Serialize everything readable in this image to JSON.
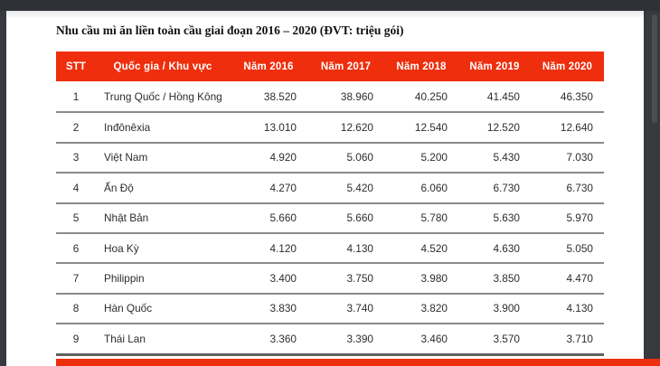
{
  "document": {
    "title": "Nhu cầu mì ăn liền toàn cầu giai đoạn 2016 – 2020 (ĐVT: triệu gói)"
  },
  "table": {
    "columns": [
      "STT",
      "Quốc gia / Khu vực",
      "Năm 2016",
      "Năm 2017",
      "Năm 2018",
      "Năm 2019",
      "Năm 2020"
    ],
    "rows": [
      {
        "stt": "1",
        "country": "Trung Quốc / Hồng Kông",
        "values": [
          "38.520",
          "38.960",
          "40.250",
          "41.450",
          "46.350"
        ]
      },
      {
        "stt": "2",
        "country": "Inđônêxia",
        "values": [
          "13.010",
          "12.620",
          "12.540",
          "12.520",
          "12.640"
        ]
      },
      {
        "stt": "3",
        "country": "Việt Nam",
        "values": [
          "4.920",
          "5.060",
          "5.200",
          "5.430",
          "7.030"
        ]
      },
      {
        "stt": "4",
        "country": "Ấn Độ",
        "values": [
          "4.270",
          "5.420",
          "6.060",
          "6.730",
          "6.730"
        ]
      },
      {
        "stt": "5",
        "country": "Nhật Bản",
        "values": [
          "5.660",
          "5.660",
          "5.780",
          "5.630",
          "5.970"
        ]
      },
      {
        "stt": "6",
        "country": "Hoa Kỳ",
        "values": [
          "4.120",
          "4.130",
          "4.520",
          "4.630",
          "5.050"
        ]
      },
      {
        "stt": "7",
        "country": "Philippin",
        "values": [
          "3.400",
          "3.750",
          "3.980",
          "3.850",
          "4.470"
        ]
      },
      {
        "stt": "8",
        "country": "Hàn Quốc",
        "values": [
          "3.830",
          "3.740",
          "3.820",
          "3.900",
          "4.130"
        ]
      },
      {
        "stt": "9",
        "country": "Thái Lan",
        "values": [
          "3.360",
          "3.390",
          "3.460",
          "3.570",
          "3.710"
        ]
      }
    ]
  },
  "chart_data": {
    "type": "table",
    "title": "Nhu cầu mì ăn liền toàn cầu giai đoạn 2016 – 2020",
    "unit": "triệu gói",
    "categories": [
      "Năm 2016",
      "Năm 2017",
      "Năm 2018",
      "Năm 2019",
      "Năm 2020"
    ],
    "series": [
      {
        "name": "Trung Quốc / Hồng Kông",
        "values": [
          38520,
          38960,
          40250,
          41450,
          46350
        ]
      },
      {
        "name": "Inđônêxia",
        "values": [
          13010,
          12620,
          12540,
          12520,
          12640
        ]
      },
      {
        "name": "Việt Nam",
        "values": [
          4920,
          5060,
          5200,
          5430,
          7030
        ]
      },
      {
        "name": "Ấn Độ",
        "values": [
          4270,
          5420,
          6060,
          6730,
          6730
        ]
      },
      {
        "name": "Nhật Bản",
        "values": [
          5660,
          5660,
          5780,
          5630,
          5970
        ]
      },
      {
        "name": "Hoa Kỳ",
        "values": [
          4120,
          4130,
          4520,
          4630,
          5050
        ]
      },
      {
        "name": "Philippin",
        "values": [
          3400,
          3750,
          3980,
          3850,
          4470
        ]
      },
      {
        "name": "Hàn Quốc",
        "values": [
          3830,
          3740,
          3820,
          3900,
          4130
        ]
      },
      {
        "name": "Thái Lan",
        "values": [
          3360,
          3390,
          3460,
          3570,
          3710
        ]
      }
    ]
  },
  "colors": {
    "accent_red": "#ee2e0d",
    "header_text": "#ffffff",
    "body_text": "#2d2d2d",
    "row_line": "#8a8a8a",
    "table_bottom_line": "#606060",
    "chrome_bg": "#36393e",
    "page_bg": "#ffffff"
  }
}
